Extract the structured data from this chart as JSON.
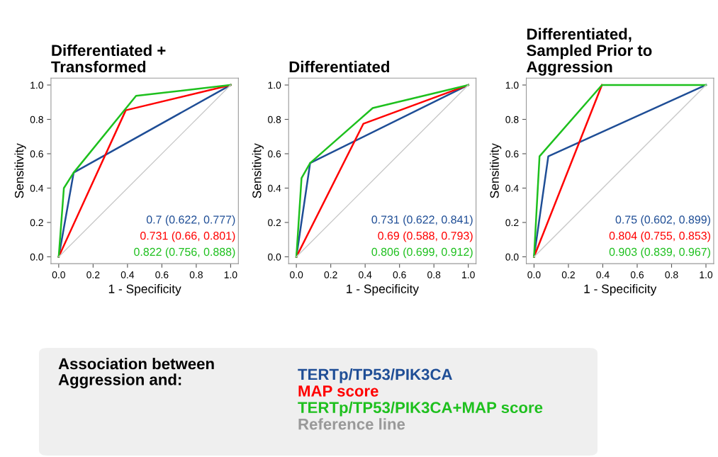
{
  "chart_data": [
    {
      "type": "line",
      "title": "Differentiated +\nTransformed",
      "xlabel": "1 - Specificity",
      "ylabel": "Sensitivity",
      "xlim": [
        -0.045,
        1.045
      ],
      "ylim": [
        -0.04,
        1.04
      ],
      "xticks": [
        {
          "value": 0,
          "label": "0.0"
        },
        {
          "value": 0.2,
          "label": "0.2"
        },
        {
          "value": 0.4,
          "label": "0.4"
        },
        {
          "value": 0.6,
          "label": "0.6"
        },
        {
          "value": 0.8,
          "label": "0.8"
        },
        {
          "value": 1,
          "label": "1.0"
        }
      ],
      "yticks": [
        {
          "value": 0,
          "label": "0.0"
        },
        {
          "value": 0.2,
          "label": "0.2"
        },
        {
          "value": 0.4,
          "label": "0.4"
        },
        {
          "value": 0.6,
          "label": "0.6"
        },
        {
          "value": 0.8,
          "label": "0.8"
        },
        {
          "value": 1,
          "label": "1.0"
        }
      ],
      "legend": "bottom",
      "legend_title": "Association between\nAggression and:",
      "series": [
        {
          "name": "TERTp/TP53/PIK3CA",
          "color": "#1f4e96",
          "x": [
            0,
            0.087,
            1
          ],
          "values": [
            0,
            0.49,
            1
          ]
        },
        {
          "name": "MAP score",
          "color": "#ff0000",
          "x": [
            0,
            0.39,
            1
          ],
          "values": [
            0,
            0.853,
            1
          ]
        },
        {
          "name": "TERTp/TP53/PIK3CA+MAP score",
          "color": "#1ec01e",
          "x": [
            0,
            0.03,
            0.087,
            0.45,
            1
          ],
          "values": [
            0,
            0.4,
            0.49,
            0.937,
            1
          ]
        },
        {
          "name": "Reference line",
          "color": "#c8c8c8",
          "x": [
            0,
            1
          ],
          "values": [
            0,
            1
          ]
        }
      ],
      "annotations": [
        "0.7 (0.622, 0.777)",
        "0.731 (0.66, 0.801)",
        "0.822 (0.756, 0.888)"
      ]
    },
    {
      "type": "line",
      "title": "Differentiated",
      "xlabel": "1 - Specificity",
      "ylabel": "Sensitivity",
      "xlim": [
        -0.045,
        1.045
      ],
      "ylim": [
        -0.04,
        1.04
      ],
      "xticks": [
        {
          "value": 0,
          "label": "0.0"
        },
        {
          "value": 0.2,
          "label": "0.2"
        },
        {
          "value": 0.4,
          "label": "0.4"
        },
        {
          "value": 0.6,
          "label": "0.6"
        },
        {
          "value": 0.8,
          "label": "0.8"
        },
        {
          "value": 1,
          "label": "1.0"
        }
      ],
      "yticks": [
        {
          "value": 0,
          "label": "0.0"
        },
        {
          "value": 0.2,
          "label": "0.2"
        },
        {
          "value": 0.4,
          "label": "0.4"
        },
        {
          "value": 0.6,
          "label": "0.6"
        },
        {
          "value": 0.8,
          "label": "0.8"
        },
        {
          "value": 1,
          "label": "1.0"
        }
      ],
      "series": [
        {
          "color": "#1f4e96",
          "x": [
            0,
            0.08,
            1
          ],
          "values": [
            0,
            0.546,
            1
          ]
        },
        {
          "color": "#ff0000",
          "x": [
            0,
            0.39,
            1
          ],
          "values": [
            0,
            0.775,
            1
          ]
        },
        {
          "color": "#1ec01e",
          "x": [
            0,
            0.03,
            0.08,
            0.444,
            1
          ],
          "values": [
            0,
            0.458,
            0.546,
            0.866,
            1
          ]
        },
        {
          "color": "#c8c8c8",
          "x": [
            0,
            1
          ],
          "values": [
            0,
            1
          ]
        }
      ],
      "annotations": [
        "0.731 (0.622, 0.841)",
        "0.69 (0.588, 0.793)",
        "0.806 (0.699, 0.912)"
      ]
    },
    {
      "type": "line",
      "title": "Differentiated,\nSampled Prior to\nAggression",
      "xlabel": "1 - Specificity",
      "ylabel": "Sensitivity",
      "xlim": [
        -0.045,
        1.045
      ],
      "ylim": [
        -0.04,
        1.04
      ],
      "xticks": [
        {
          "value": 0,
          "label": "0.0"
        },
        {
          "value": 0.2,
          "label": "0.2"
        },
        {
          "value": 0.4,
          "label": "0.4"
        },
        {
          "value": 0.6,
          "label": "0.6"
        },
        {
          "value": 0.8,
          "label": "0.8"
        },
        {
          "value": 1,
          "label": "1.0"
        }
      ],
      "yticks": [
        {
          "value": 0,
          "label": "0.0"
        },
        {
          "value": 0.2,
          "label": "0.2"
        },
        {
          "value": 0.4,
          "label": "0.4"
        },
        {
          "value": 0.6,
          "label": "0.6"
        },
        {
          "value": 0.8,
          "label": "0.8"
        },
        {
          "value": 1,
          "label": "1.0"
        }
      ],
      "series": [
        {
          "color": "#1f4e96",
          "x": [
            0,
            0.083,
            1
          ],
          "values": [
            0,
            0.585,
            1
          ]
        },
        {
          "color": "#ff0000",
          "x": [
            0,
            0.395
          ],
          "values": [
            0,
            1.0
          ]
        },
        {
          "color": "#1ec01e",
          "x": [
            0,
            0.032,
            0.395,
            1
          ],
          "values": [
            0,
            0.585,
            1.0,
            1
          ]
        },
        {
          "color": "#c8c8c8",
          "x": [
            0,
            1
          ],
          "values": [
            0,
            1
          ]
        }
      ],
      "annotations": [
        "0.75 (0.602, 0.899)",
        "0.804 (0.755, 0.853)",
        "0.903 (0.839, 0.967)"
      ]
    }
  ]
}
